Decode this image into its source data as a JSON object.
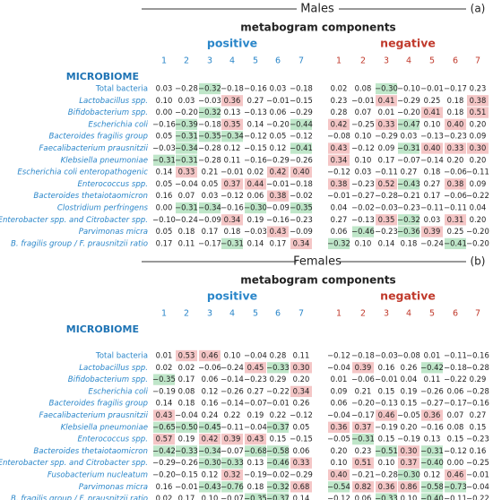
{
  "chart_data": [
    {
      "type": "heatmap",
      "sex_label": "Males",
      "panel_tag": "(a)",
      "title": "metabogram components",
      "positive_label": "positive",
      "negative_label": "negative",
      "row_header": "MICROBIOME",
      "positive_columns": [
        "1",
        "2",
        "3",
        "4",
        "5",
        "6",
        "7"
      ],
      "negative_columns": [
        "1",
        "2",
        "3",
        "4",
        "5",
        "6",
        "7"
      ],
      "rows": [
        {
          "label": "Total bacteria",
          "italic": false,
          "pos": [
            "0.03",
            "−0.28",
            "−0.32",
            "−0.18",
            "−0.16",
            "0.03",
            "−0.18"
          ],
          "neg": [
            "0.02",
            "0.08",
            "−0.30",
            "−0.10",
            "−0.01",
            "−0.17",
            "0.23"
          ]
        },
        {
          "label": "Lactobacillus spp.",
          "italic": true,
          "pos": [
            "0.10",
            "0.03",
            "−0.03",
            "0.36",
            "0.27",
            "−0.01",
            "−0.15"
          ],
          "neg": [
            "0.23",
            "−0.01",
            "0.41",
            "−0.29",
            "0.25",
            "0.18",
            "0.38"
          ]
        },
        {
          "label": "Bifidobacterium spp.",
          "italic": true,
          "pos": [
            "0.00",
            "−0.20",
            "−0.32",
            "0.13",
            "−0.13",
            "0.06",
            "−0.29"
          ],
          "neg": [
            "0.28",
            "0.07",
            "0.01",
            "−0.20",
            "0.41",
            "0.18",
            "0.51"
          ]
        },
        {
          "label": "Escherichia coli",
          "italic": true,
          "pos": [
            "−0.16",
            "−0.39",
            "−0.18",
            "0.35",
            "0.14",
            "−0.20",
            "−0.44"
          ],
          "neg": [
            "0.42",
            "−0.25",
            "0.33",
            "−0.47",
            "0.10",
            "0.40",
            "0.20"
          ]
        },
        {
          "label": "Bacteroides fragilis group",
          "italic": true,
          "pos": [
            "0.05",
            "−0.31",
            "−0.35",
            "−0.34",
            "−0.12",
            "0.05",
            "−0.12"
          ],
          "neg": [
            "−0.08",
            "0.10",
            "−0.29",
            "0.03",
            "−0.13",
            "−0.23",
            "0.09"
          ]
        },
        {
          "label": "Faecalibacterium prausnitzii",
          "italic": true,
          "pos": [
            "−0.03",
            "−0.34",
            "−0.28",
            "0.12",
            "−0.15",
            "0.12",
            "−0.41"
          ],
          "neg": [
            "0.43",
            "−0.12",
            "0.09",
            "−0.31",
            "0.40",
            "0.33",
            "0.30"
          ]
        },
        {
          "label": "Klebsiella pneumoniae",
          "italic": true,
          "pos": [
            "−0.31",
            "−0.31",
            "−0.28",
            "0.11",
            "−0.16",
            "−0.29",
            "−0.26"
          ],
          "neg": [
            "0.34",
            "0.10",
            "0.17",
            "−0.07",
            "−0.14",
            "0.20",
            "0.20"
          ]
        },
        {
          "label": "Escherichia coli enteropathogenic",
          "italic": true,
          "pos": [
            "0.14",
            "0.33",
            "0.21",
            "−0.01",
            "0.02",
            "0.42",
            "0.40"
          ],
          "neg": [
            "−0.12",
            "0.03",
            "−0.11",
            "0.27",
            "0.18",
            "−0.06",
            "−0.11"
          ]
        },
        {
          "label": "Enterococcus spp.",
          "italic": true,
          "pos": [
            "0.05",
            "−0.04",
            "0.05",
            "0.37",
            "0.44",
            "−0.01",
            "−0.18"
          ],
          "neg": [
            "0.38",
            "−0.23",
            "0.52",
            "−0.43",
            "0.27",
            "0.38",
            "0.09"
          ]
        },
        {
          "label": "Bacteroides thetaiotaomicron",
          "italic": true,
          "pos": [
            "0.16",
            "0.07",
            "0.03",
            "−0.12",
            "0.06",
            "0.38",
            "−0.02"
          ],
          "neg": [
            "−0.01",
            "−0.27",
            "−0.28",
            "−0.21",
            "0.17",
            "−0.06",
            "−0.22"
          ]
        },
        {
          "label": "Clostridium perfringens",
          "italic": true,
          "pos": [
            "0.00",
            "−0.31",
            "−0.34",
            "−0.16",
            "−0.30",
            "−0.09",
            "−0.35"
          ],
          "neg": [
            "0.04",
            "−0.02",
            "−0.03",
            "−0.23",
            "−0.11",
            "−0.11",
            "0.04"
          ]
        },
        {
          "label": "Enterobacter spp. and Citrobacter spp.",
          "italic": true,
          "pos": [
            "−0.10",
            "−0.24",
            "−0.09",
            "0.34",
            "0.19",
            "−0.16",
            "−0.23"
          ],
          "neg": [
            "0.27",
            "−0.13",
            "0.35",
            "−0.32",
            "0.03",
            "0.31",
            "0.20"
          ]
        },
        {
          "label": "Parvimonas micra",
          "italic": true,
          "pos": [
            "0.05",
            "0.18",
            "0.17",
            "0.18",
            "−0.03",
            "0.43",
            "−0.09"
          ],
          "neg": [
            "0.06",
            "−0.46",
            "−0.23",
            "−0.36",
            "0.39",
            "0.25",
            "−0.20"
          ]
        },
        {
          "label": "B. fragilis group / F. prausnitzii ratio",
          "italic": true,
          "pos": [
            "0.17",
            "0.11",
            "−0.17",
            "−0.31",
            "0.14",
            "0.17",
            "0.34"
          ],
          "neg": [
            "−0.32",
            "0.10",
            "0.14",
            "0.18",
            "−0.24",
            "−0.41",
            "−0.20"
          ]
        }
      ]
    },
    {
      "type": "heatmap",
      "sex_label": "Females",
      "panel_tag": "(b)",
      "title": "metabogram components",
      "positive_label": "positive",
      "negative_label": "negative",
      "row_header": "MICROBIOME",
      "positive_columns": [
        "1",
        "2",
        "3",
        "4",
        "5",
        "6",
        "7"
      ],
      "negative_columns": [
        "1",
        "2",
        "3",
        "4",
        "5",
        "6",
        "7"
      ],
      "rows": [
        {
          "label": "Total bacteria",
          "italic": false,
          "pos": [
            "0.01",
            "0.53",
            "0.46",
            "0.10",
            "−0.04",
            "0.28",
            "0.11"
          ],
          "neg": [
            "−0.12",
            "−0.18",
            "−0.03",
            "−0.08",
            "0.01",
            "−0.11",
            "−0.16"
          ]
        },
        {
          "label": "Lactobacillus spp.",
          "italic": true,
          "pos": [
            "0.02",
            "0.02",
            "−0.06",
            "−0.24",
            "0.45",
            "−0.33",
            "0.30"
          ],
          "neg": [
            "−0.04",
            "0.39",
            "0.16",
            "0.26",
            "−0.42",
            "−0.18",
            "−0.28"
          ]
        },
        {
          "label": "Bifidobacterium spp.",
          "italic": true,
          "pos": [
            "−0.35",
            "0.17",
            "0.06",
            "−0.14",
            "−0.23",
            "0.29",
            "0.20"
          ],
          "neg": [
            "0.01",
            "−0.06",
            "−0.01",
            "0.04",
            "0.11",
            "−0.22",
            "0.29"
          ]
        },
        {
          "label": "Escherichia coli",
          "italic": true,
          "pos": [
            "−0.19",
            "0.08",
            "0.12",
            "−0.26",
            "0.27",
            "−0.22",
            "0.34"
          ],
          "neg": [
            "0.09",
            "0.21",
            "0.15",
            "0.19",
            "−0.26",
            "0.06",
            "−0.28"
          ]
        },
        {
          "label": "Bacteroides fragilis group",
          "italic": true,
          "pos": [
            "0.14",
            "0.18",
            "0.16",
            "−0.14",
            "−0.07",
            "−0.01",
            "0.26"
          ],
          "neg": [
            "0.06",
            "−0.20",
            "−0.13",
            "0.15",
            "−0.27",
            "−0.17",
            "−0.16"
          ]
        },
        {
          "label": "Faecalibacterium prausnitzii",
          "italic": true,
          "pos": [
            "0.43",
            "−0.04",
            "0.24",
            "0.22",
            "0.19",
            "0.22",
            "−0.12"
          ],
          "neg": [
            "−0.04",
            "−0.17",
            "0.46",
            "−0.05",
            "0.36",
            "0.07",
            "0.27"
          ]
        },
        {
          "label": "Klebsiella pneumoniae",
          "italic": true,
          "pos": [
            "−0.65",
            "−0.50",
            "−0.45",
            "−0.11",
            "−0.04",
            "−0.37",
            "0.05"
          ],
          "neg": [
            "0.36",
            "0.37",
            "−0.19",
            "0.20",
            "−0.16",
            "0.08",
            "0.15"
          ]
        },
        {
          "label": "Enterococcus spp.",
          "italic": true,
          "pos": [
            "0.57",
            "0.19",
            "0.42",
            "0.39",
            "0.43",
            "0.15",
            "−0.15"
          ],
          "neg": [
            "−0.05",
            "−0.31",
            "0.15",
            "−0.19",
            "0.13",
            "0.15",
            "−0.23"
          ]
        },
        {
          "label": "Bacteroides thetaiotaomicron",
          "italic": true,
          "pos": [
            "−0.42",
            "−0.33",
            "−0.34",
            "−0.07",
            "−0.68",
            "−0.58",
            "0.06"
          ],
          "neg": [
            "0.20",
            "0.23",
            "−0.51",
            "0.30",
            "−0.31",
            "−0.12",
            "0.16"
          ]
        },
        {
          "label": "Enterobacter spp. and Citrobacter spp.",
          "italic": true,
          "pos": [
            "−0.29",
            "−0.26",
            "−0.30",
            "−0.33",
            "0.13",
            "−0.46",
            "0.33"
          ],
          "neg": [
            "0.10",
            "0.51",
            "0.10",
            "0.37",
            "−0.40",
            "0.00",
            "−0.25"
          ]
        },
        {
          "label": "Fusobacterium nucleatum",
          "italic": true,
          "pos": [
            "−0.20",
            "−0.15",
            "0.12",
            "0.32",
            "−0.19",
            "−0.02",
            "−0.29"
          ],
          "neg": [
            "0.40",
            "−0.21",
            "−0.28",
            "−0.30",
            "0.12",
            "0.46",
            "−0.01"
          ]
        },
        {
          "label": "Parvimonas micra",
          "italic": true,
          "pos": [
            "0.16",
            "−0.01",
            "−0.43",
            "−0.76",
            "0.18",
            "−0.32",
            "0.68"
          ],
          "neg": [
            "−0.54",
            "0.82",
            "0.36",
            "0.86",
            "−0.58",
            "−0.73",
            "−0.04"
          ]
        },
        {
          "label": "B. fragilis group / F. prausnitzii ratio",
          "italic": true,
          "pos": [
            "0.02",
            "0.17",
            "0.10",
            "−0.07",
            "−0.35",
            "−0.37",
            "0.14"
          ],
          "neg": [
            "−0.12",
            "0.06",
            "−0.33",
            "0.10",
            "−0.40",
            "−0.11",
            "−0.22"
          ]
        }
      ]
    }
  ],
  "colors": {
    "positive_header": "#2a86c9",
    "negative_header": "#c0392b",
    "column_number_pos": "#2a86c9",
    "column_number_neg": "#c0392b",
    "row_label": "#2a86c9",
    "row_header": "#1f74b5",
    "positive_highlight": "#f4c6c6",
    "negative_highlight": "#bfe6c9",
    "text": "#222222"
  },
  "highlight_threshold_abs": 0.3
}
